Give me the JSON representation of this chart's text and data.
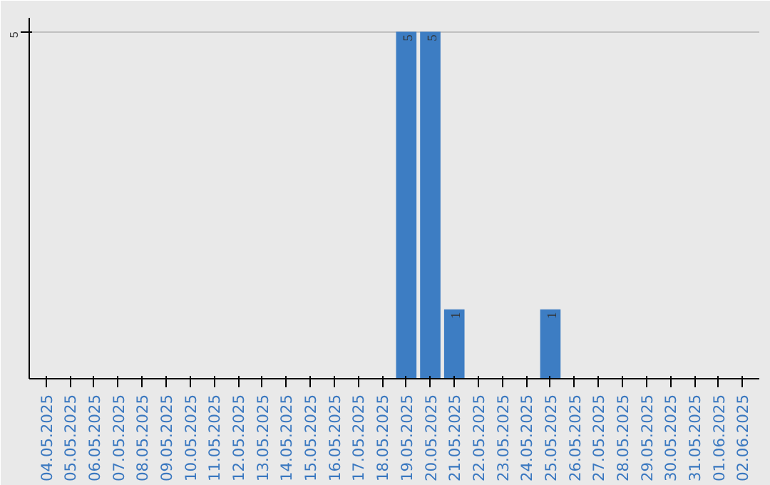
{
  "chart_data": {
    "type": "bar",
    "categories": [
      "04.05.2025",
      "05.05.2025",
      "06.05.2025",
      "07.05.2025",
      "08.05.2025",
      "09.05.2025",
      "10.05.2025",
      "11.05.2025",
      "12.05.2025",
      "13.05.2025",
      "14.05.2025",
      "15.05.2025",
      "16.05.2025",
      "17.05.2025",
      "18.05.2025",
      "19.05.2025",
      "20.05.2025",
      "21.05.2025",
      "22.05.2025",
      "23.05.2025",
      "24.05.2025",
      "25.05.2025",
      "26.05.2025",
      "27.05.2025",
      "28.05.2025",
      "29.05.2025",
      "30.05.2025",
      "31.05.2025",
      "01.06.2025",
      "02.06.2025"
    ],
    "values": [
      null,
      null,
      null,
      null,
      null,
      null,
      null,
      null,
      null,
      null,
      null,
      null,
      null,
      null,
      null,
      5,
      5,
      1,
      null,
      null,
      null,
      1,
      null,
      null,
      null,
      null,
      null,
      null,
      null,
      null
    ],
    "color": "#3d7dc3",
    "ylim": [
      0,
      5.2
    ],
    "yticks": [
      5
    ],
    "grid": "y",
    "data_labels": true
  }
}
